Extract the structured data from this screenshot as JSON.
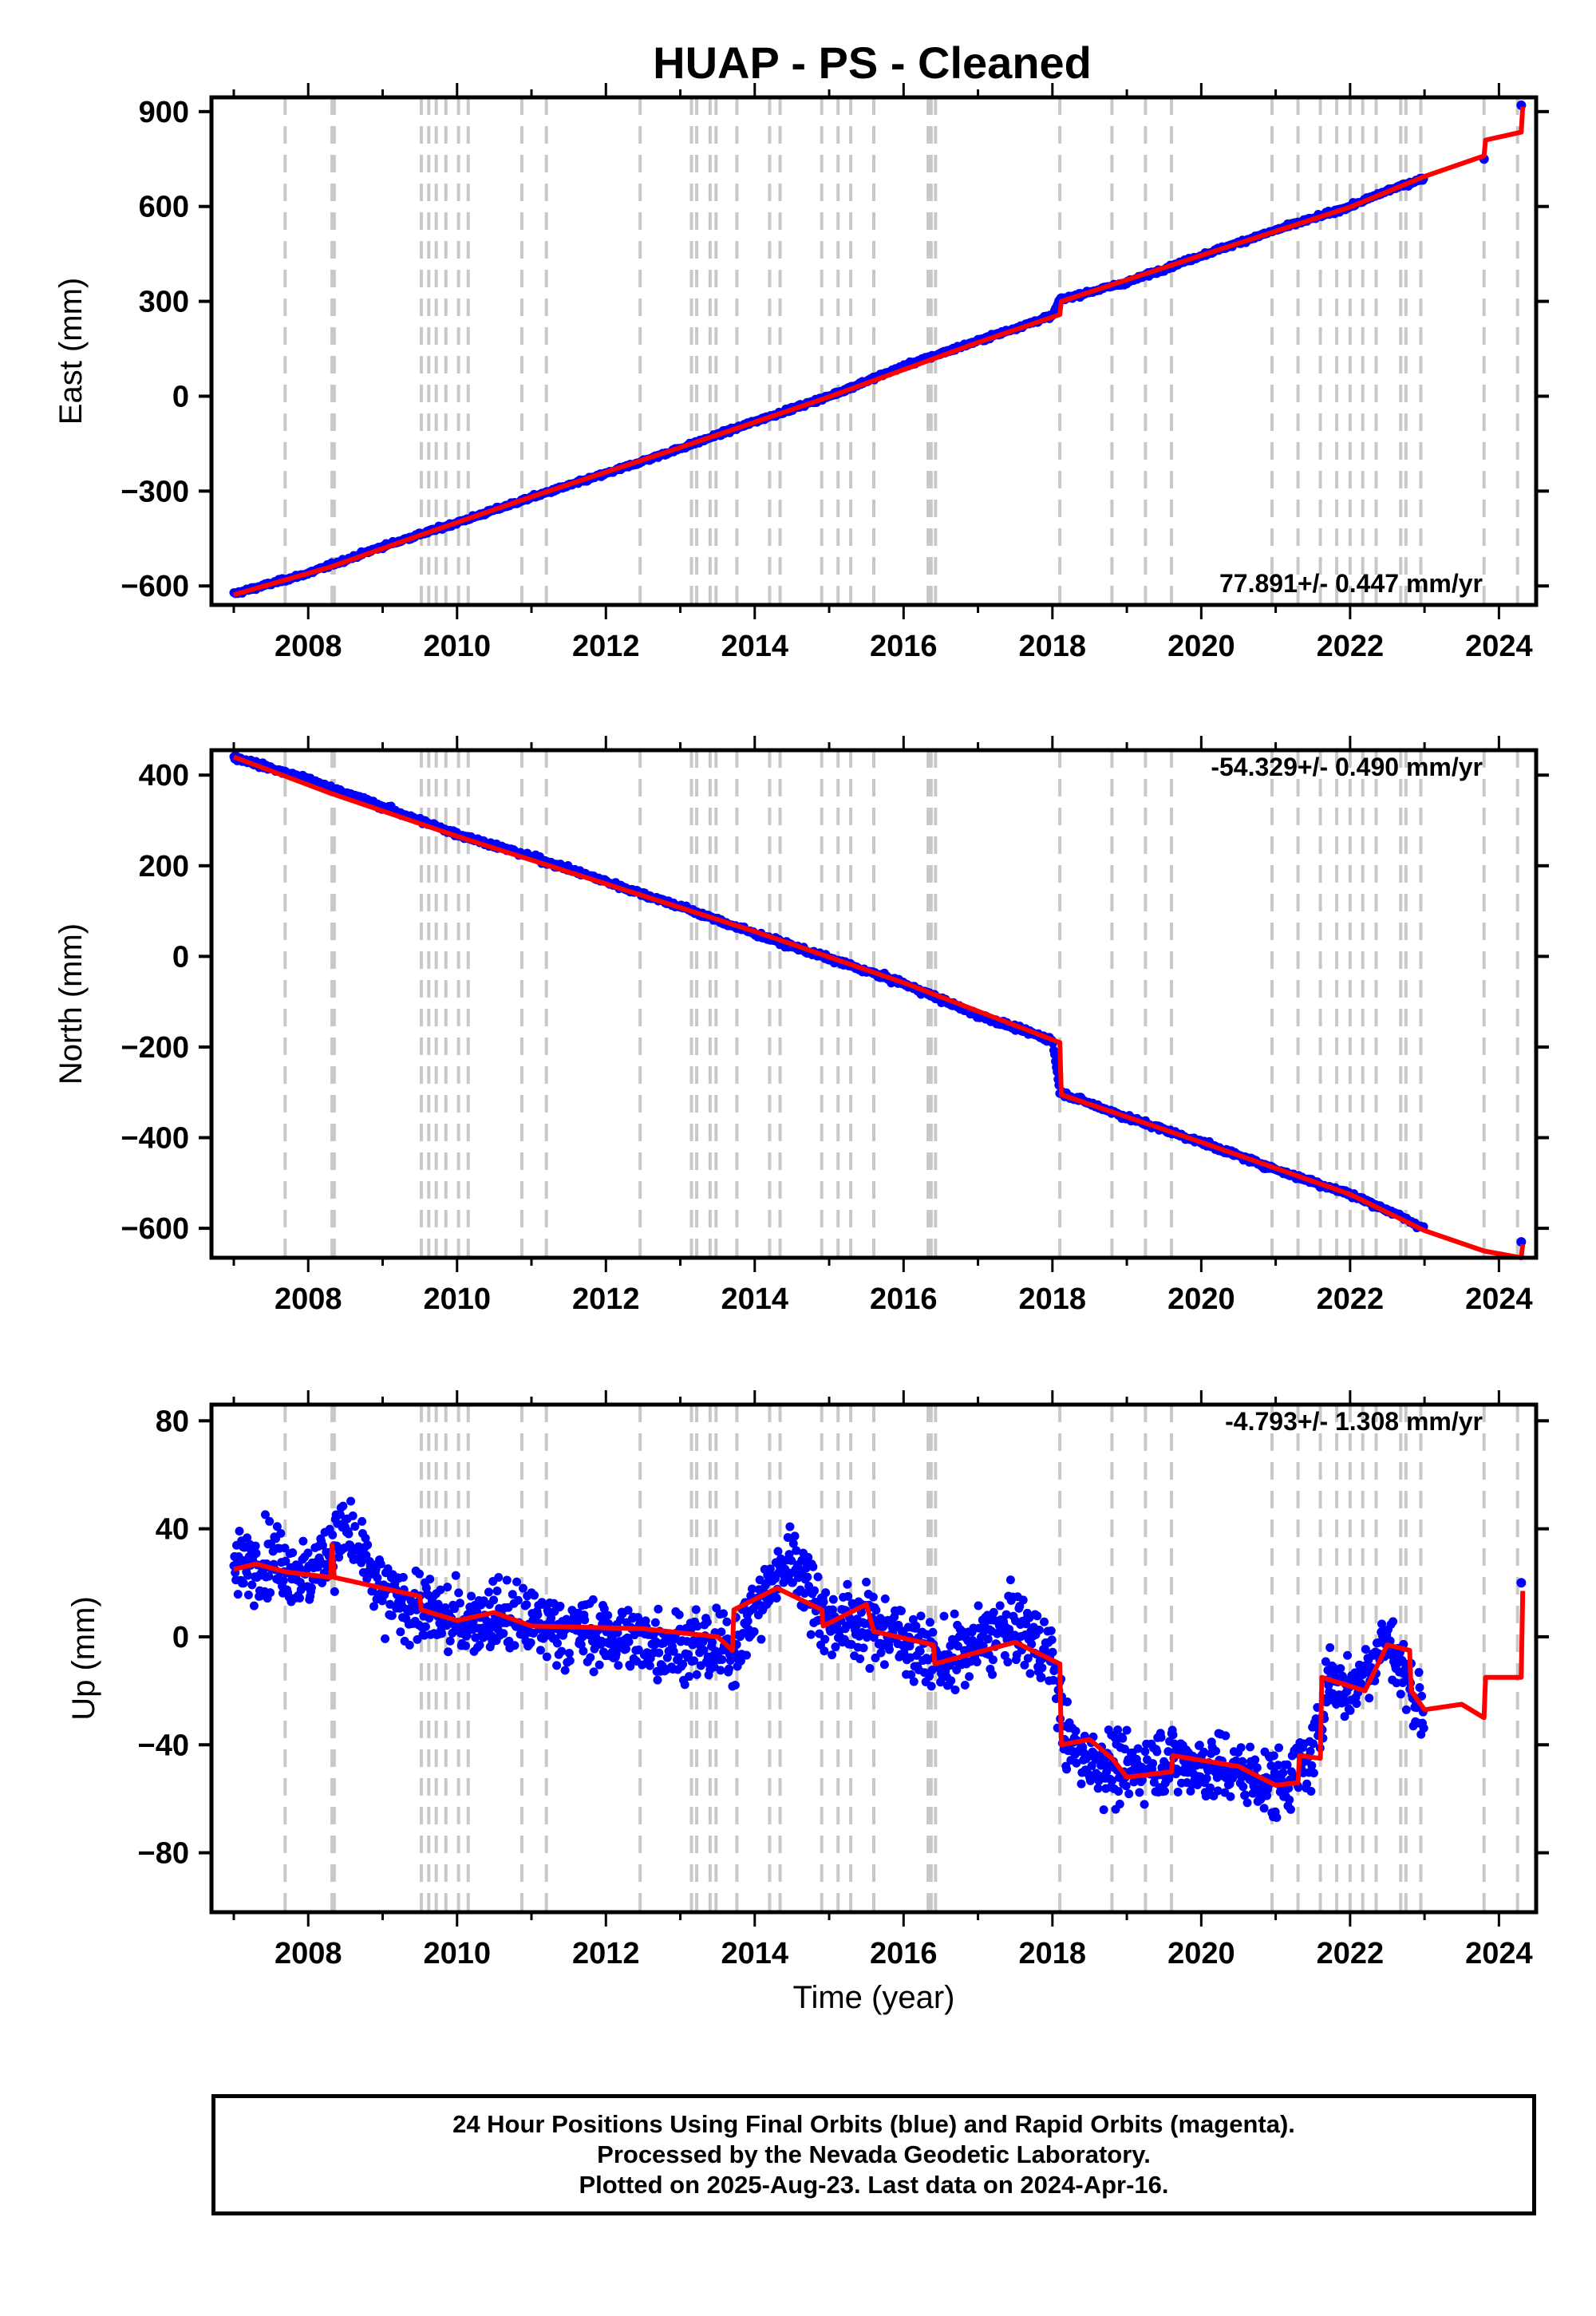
{
  "title": "HUAP  - PS - Cleaned",
  "xlabel": "Time (year)",
  "xticks": [
    "2008",
    "2010",
    "2012",
    "2014",
    "2016",
    "2018",
    "2020",
    "2022",
    "2024"
  ],
  "footer": {
    "line1": "24 Hour Positions Using Final Orbits (blue) and Rapid Orbits (magenta).",
    "line2": "Processed by the Nevada Geodetic Laboratory.",
    "line3": "Plotted on 2025-Aug-23. Last data on 2024-Apr-16."
  },
  "colors": {
    "data_points": "#0000ff",
    "model_line": "#ff0000",
    "event_lines": "#c8c8c8"
  },
  "chart_data": [
    {
      "type": "scatter",
      "ylabel": "East (mm)",
      "yticks": [
        900,
        600,
        300,
        0,
        -300,
        -600
      ],
      "ylim": [
        -660,
        945
      ],
      "xlim": [
        2006.7,
        2024.5
      ],
      "rate_label": "77.891+/- 0.447 mm/yr",
      "series": [
        {
          "values": [
            [
              2007.0,
              -625
            ],
            [
              2008.0,
              -560
            ],
            [
              2009.0,
              -475
            ],
            [
              2010.0,
              -400
            ],
            [
              2011.0,
              -320
            ],
            [
              2012.0,
              -245
            ],
            [
              2013.0,
              -165
            ],
            [
              2014.0,
              -80
            ],
            [
              2015.0,
              0
            ],
            [
              2016.0,
              95
            ],
            [
              2017.0,
              175
            ],
            [
              2018.0,
              255
            ],
            [
              2018.1,
              305
            ],
            [
              2019.0,
              360
            ],
            [
              2020.0,
              445
            ],
            [
              2021.0,
              525
            ],
            [
              2022.0,
              600
            ],
            [
              2022.5,
              650
            ],
            [
              2023.0,
              690
            ],
            [
              2023.8,
              750
            ],
            [
              2024.3,
              920
            ]
          ]
        }
      ],
      "model": [
        [
          2007.0,
          -628
        ],
        [
          2008.3,
          -540
        ],
        [
          2009.5,
          -440
        ],
        [
          2011.0,
          -318
        ],
        [
          2013.0,
          -162
        ],
        [
          2015.0,
          -2
        ],
        [
          2017.0,
          170
        ],
        [
          2018.1,
          258
        ],
        [
          2018.12,
          300
        ],
        [
          2020.0,
          445
        ],
        [
          2022.0,
          598
        ],
        [
          2023.0,
          695
        ],
        [
          2023.8,
          760
        ],
        [
          2023.82,
          810
        ],
        [
          2024.3,
          835
        ],
        [
          2024.32,
          915
        ]
      ]
    },
    {
      "type": "scatter",
      "ylabel": "North (mm)",
      "yticks": [
        400,
        200,
        0,
        -200,
        -400,
        -600
      ],
      "ylim": [
        -665,
        455
      ],
      "xlim": [
        2006.7,
        2024.5
      ],
      "rate_label": "-54.329+/- 0.490 mm/yr",
      "series": [
        {
          "values": [
            [
              2007.0,
              440
            ],
            [
              2008.0,
              390
            ],
            [
              2009.0,
              330
            ],
            [
              2010.0,
              270
            ],
            [
              2011.0,
              220
            ],
            [
              2012.0,
              165
            ],
            [
              2013.0,
              110
            ],
            [
              2014.0,
              50
            ],
            [
              2015.0,
              -5
            ],
            [
              2016.0,
              -60
            ],
            [
              2017.0,
              -130
            ],
            [
              2018.0,
              -185
            ],
            [
              2018.1,
              -300
            ],
            [
              2019.0,
              -355
            ],
            [
              2020.0,
              -410
            ],
            [
              2021.0,
              -470
            ],
            [
              2022.0,
              -525
            ],
            [
              2022.5,
              -560
            ],
            [
              2023.0,
              -600
            ],
            [
              2024.3,
              -630
            ]
          ]
        }
      ],
      "model": [
        [
          2007.0,
          440
        ],
        [
          2008.3,
          360
        ],
        [
          2010.0,
          265
        ],
        [
          2012.0,
          160
        ],
        [
          2014.0,
          55
        ],
        [
          2016.0,
          -58
        ],
        [
          2018.1,
          -190
        ],
        [
          2018.12,
          -305
        ],
        [
          2020.0,
          -410
        ],
        [
          2022.0,
          -525
        ],
        [
          2023.0,
          -605
        ],
        [
          2023.8,
          -650
        ],
        [
          2024.3,
          -665
        ],
        [
          2024.32,
          -635
        ]
      ]
    },
    {
      "type": "scatter",
      "ylabel": "Up (mm)",
      "yticks": [
        80,
        40,
        0,
        -40,
        -80
      ],
      "ylim": [
        -102,
        86
      ],
      "xlim": [
        2006.7,
        2024.5
      ],
      "rate_label": "-4.793+/- 1.308 mm/yr",
      "series": [
        {
          "values": [
            [
              2007.0,
              25
            ],
            [
              2007.5,
              30
            ],
            [
              2008.0,
              22
            ],
            [
              2008.5,
              40
            ],
            [
              2009.0,
              15
            ],
            [
              2009.5,
              10
            ],
            [
              2010.0,
              5
            ],
            [
              2010.5,
              8
            ],
            [
              2011.0,
              5
            ],
            [
              2012.0,
              0
            ],
            [
              2013.0,
              -3
            ],
            [
              2013.7,
              -5
            ],
            [
              2014.0,
              10
            ],
            [
              2014.5,
              30
            ],
            [
              2015.0,
              5
            ],
            [
              2015.5,
              5
            ],
            [
              2016.0,
              0
            ],
            [
              2016.5,
              -10
            ],
            [
              2017.0,
              -3
            ],
            [
              2017.5,
              5
            ],
            [
              2018.0,
              -8
            ],
            [
              2018.2,
              -40
            ],
            [
              2018.5,
              -45
            ],
            [
              2019.0,
              -50
            ],
            [
              2019.5,
              -45
            ],
            [
              2020.0,
              -48
            ],
            [
              2020.5,
              -50
            ],
            [
              2021.0,
              -55
            ],
            [
              2021.5,
              -45
            ],
            [
              2021.7,
              -15
            ],
            [
              2022.0,
              -20
            ],
            [
              2022.5,
              0
            ],
            [
              2023.0,
              -30
            ],
            [
              2024.3,
              20
            ]
          ]
        }
      ],
      "model": [
        [
          2007.0,
          25
        ],
        [
          2007.3,
          27
        ],
        [
          2007.7,
          24
        ],
        [
          2008.3,
          22
        ],
        [
          2008.32,
          34
        ],
        [
          2008.35,
          22
        ],
        [
          2009.5,
          15
        ],
        [
          2009.52,
          10
        ],
        [
          2010.0,
          6
        ],
        [
          2010.5,
          9
        ],
        [
          2011.0,
          4
        ],
        [
          2012.5,
          3
        ],
        [
          2013.5,
          0
        ],
        [
          2013.7,
          -5
        ],
        [
          2013.72,
          10
        ],
        [
          2014.3,
          18
        ],
        [
          2014.9,
          10
        ],
        [
          2014.92,
          4
        ],
        [
          2015.5,
          12
        ],
        [
          2015.6,
          2
        ],
        [
          2016.4,
          -3
        ],
        [
          2016.42,
          -10
        ],
        [
          2017.5,
          -2
        ],
        [
          2018.1,
          -10
        ],
        [
          2018.12,
          -40
        ],
        [
          2018.5,
          -38
        ],
        [
          2018.8,
          -45
        ],
        [
          2019.0,
          -52
        ],
        [
          2019.6,
          -50
        ],
        [
          2019.62,
          -44
        ],
        [
          2020.5,
          -48
        ],
        [
          2021.0,
          -55
        ],
        [
          2021.3,
          -54
        ],
        [
          2021.32,
          -44
        ],
        [
          2021.6,
          -45
        ],
        [
          2021.62,
          -15
        ],
        [
          2022.2,
          -20
        ],
        [
          2022.5,
          -3
        ],
        [
          2022.8,
          -5
        ],
        [
          2022.82,
          -20
        ],
        [
          2023.0,
          -27
        ],
        [
          2023.5,
          -25
        ],
        [
          2023.8,
          -30
        ],
        [
          2023.82,
          -15
        ],
        [
          2024.3,
          -15
        ],
        [
          2024.32,
          17
        ]
      ]
    }
  ],
  "events": [
    2007.69,
    2008.32,
    2008.35,
    2009.52,
    2009.62,
    2009.72,
    2009.85,
    2010.02,
    2010.15,
    2010.87,
    2011.2,
    2012.46,
    2013.15,
    2013.22,
    2013.4,
    2013.48,
    2013.76,
    2014.2,
    2014.34,
    2014.9,
    2015.12,
    2015.29,
    2015.6,
    2016.33,
    2016.37,
    2016.43,
    2018.1,
    2018.8,
    2019.25,
    2019.6,
    2020.95,
    2021.3,
    2021.6,
    2021.82,
    2022.0,
    2022.17,
    2022.35,
    2022.68,
    2022.75,
    2022.95,
    2023.8,
    2024.25
  ]
}
